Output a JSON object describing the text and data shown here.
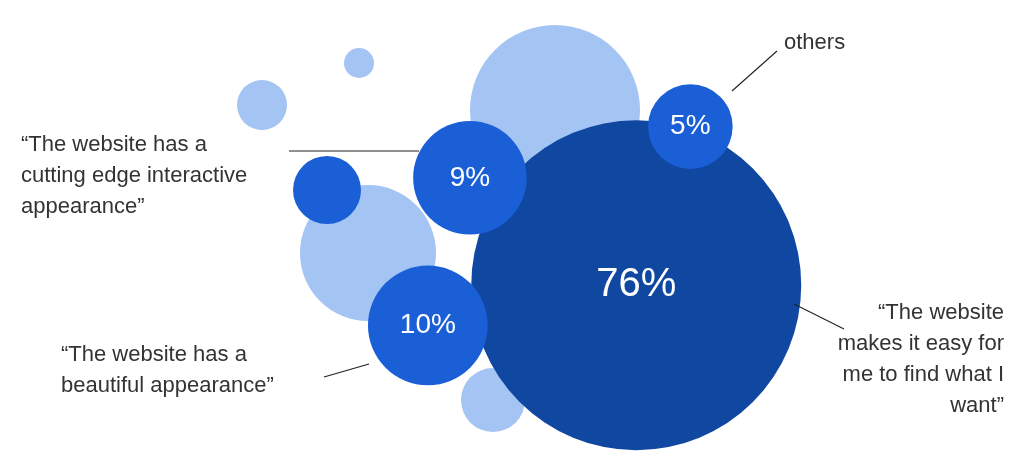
{
  "chart_data": {
    "type": "other",
    "categories": [
      "“The website makes it easy for me to find what I want”",
      "“The website has a beautiful appearance”",
      "“The website has a cutting edge interactive appearance”",
      "others"
    ],
    "values": [
      76,
      10,
      9,
      5
    ],
    "value_labels": [
      "76%",
      "10%",
      "9%",
      "5%"
    ],
    "colors": [
      "#0f47a1",
      "#1a5fd6",
      "#1a5fd6",
      "#1a5fd6"
    ]
  }
}
